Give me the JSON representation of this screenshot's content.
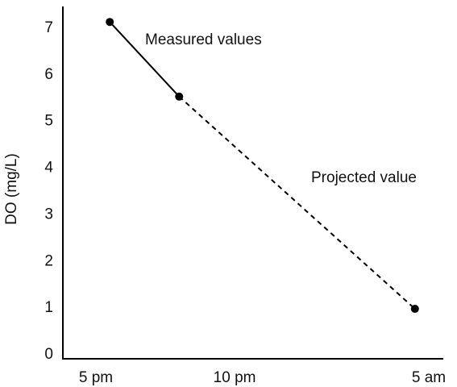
{
  "chart_data": {
    "type": "line",
    "title": "",
    "xlabel": "",
    "ylabel": "DO (mg/L)",
    "x_ticks": [
      {
        "label": "5 pm",
        "hour": 17
      },
      {
        "label": "10 pm",
        "hour": 22
      },
      {
        "label": "5 am",
        "hour": 29
      }
    ],
    "y_ticks": [
      0,
      1,
      2,
      3,
      4,
      5,
      6,
      7
    ],
    "xlim": [
      17,
      29
    ],
    "ylim": [
      0,
      7
    ],
    "grid": false,
    "legend": "none",
    "series": [
      {
        "name": "Measured values",
        "style": "solid",
        "points": [
          {
            "x": "5:30 pm",
            "y": 7.1
          },
          {
            "x": "8:00 pm",
            "y": 5.5
          }
        ]
      },
      {
        "name": "Projected value",
        "style": "dashed",
        "points": [
          {
            "x": "8:00 pm",
            "y": 5.5
          },
          {
            "x": "4:30 am",
            "y": 0.95
          }
        ]
      }
    ],
    "annotations": [
      {
        "text": "Measured values",
        "series": "Measured values"
      },
      {
        "text": "Projected value",
        "series": "Projected value"
      }
    ],
    "colors": {
      "line": "#000000",
      "marker": "#000000",
      "axis": "#000000"
    }
  }
}
